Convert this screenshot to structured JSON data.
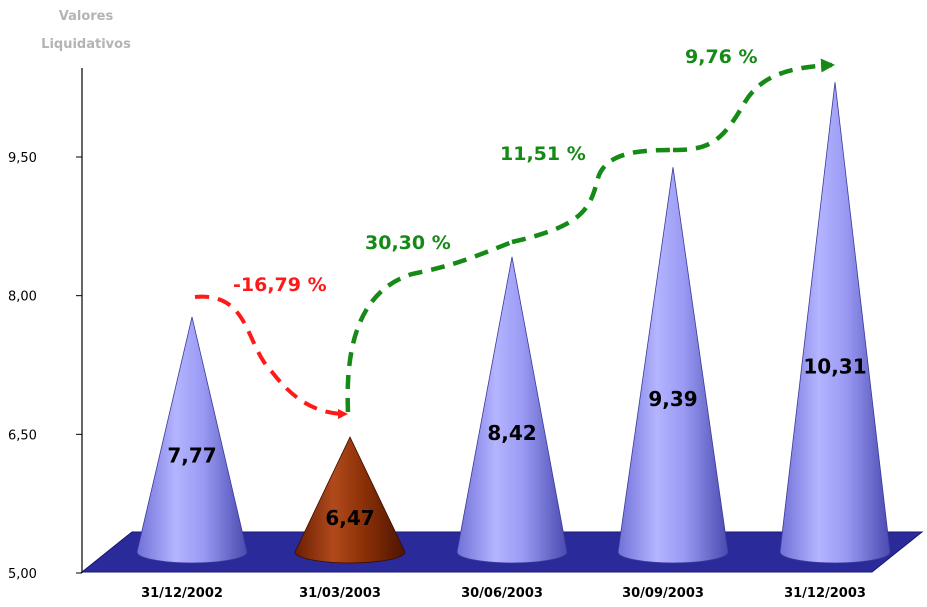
{
  "chart_data": {
    "type": "bar",
    "bar_shape": "cone",
    "ylabel": "Valores Liquidativos",
    "ylim": [
      5.0,
      10.2
    ],
    "yticks": [
      "9,50",
      "8,00",
      "6,50",
      "5,00"
    ],
    "ytick_values": [
      9.5,
      8.0,
      6.5,
      5.0
    ],
    "categories": [
      "31/12/2002",
      "31/03/2003",
      "30/06/2003",
      "30/09/2003",
      "31/12/2003"
    ],
    "values": [
      7.77,
      6.47,
      8.42,
      9.39,
      10.31
    ],
    "value_labels": [
      "7,77",
      "6,47",
      "8,42",
      "9,39",
      "10,31"
    ],
    "changes": [
      {
        "from": 0,
        "to": 1,
        "label": "-16,79 %",
        "color": "#ff1a1a"
      },
      {
        "from": 1,
        "to": 2,
        "label": "30,30 %",
        "color": "#168a16"
      },
      {
        "from": 2,
        "to": 3,
        "label": "11,51 %",
        "color": "#168a16"
      },
      {
        "from": 3,
        "to": 4,
        "label": "9,76 %",
        "color": "#168a16"
      }
    ],
    "colors": {
      "cone_default": "#8c8cf0",
      "cone_highlight": "#8a2a06",
      "floor": "#2a2a9a"
    },
    "highlight_index": 1
  }
}
